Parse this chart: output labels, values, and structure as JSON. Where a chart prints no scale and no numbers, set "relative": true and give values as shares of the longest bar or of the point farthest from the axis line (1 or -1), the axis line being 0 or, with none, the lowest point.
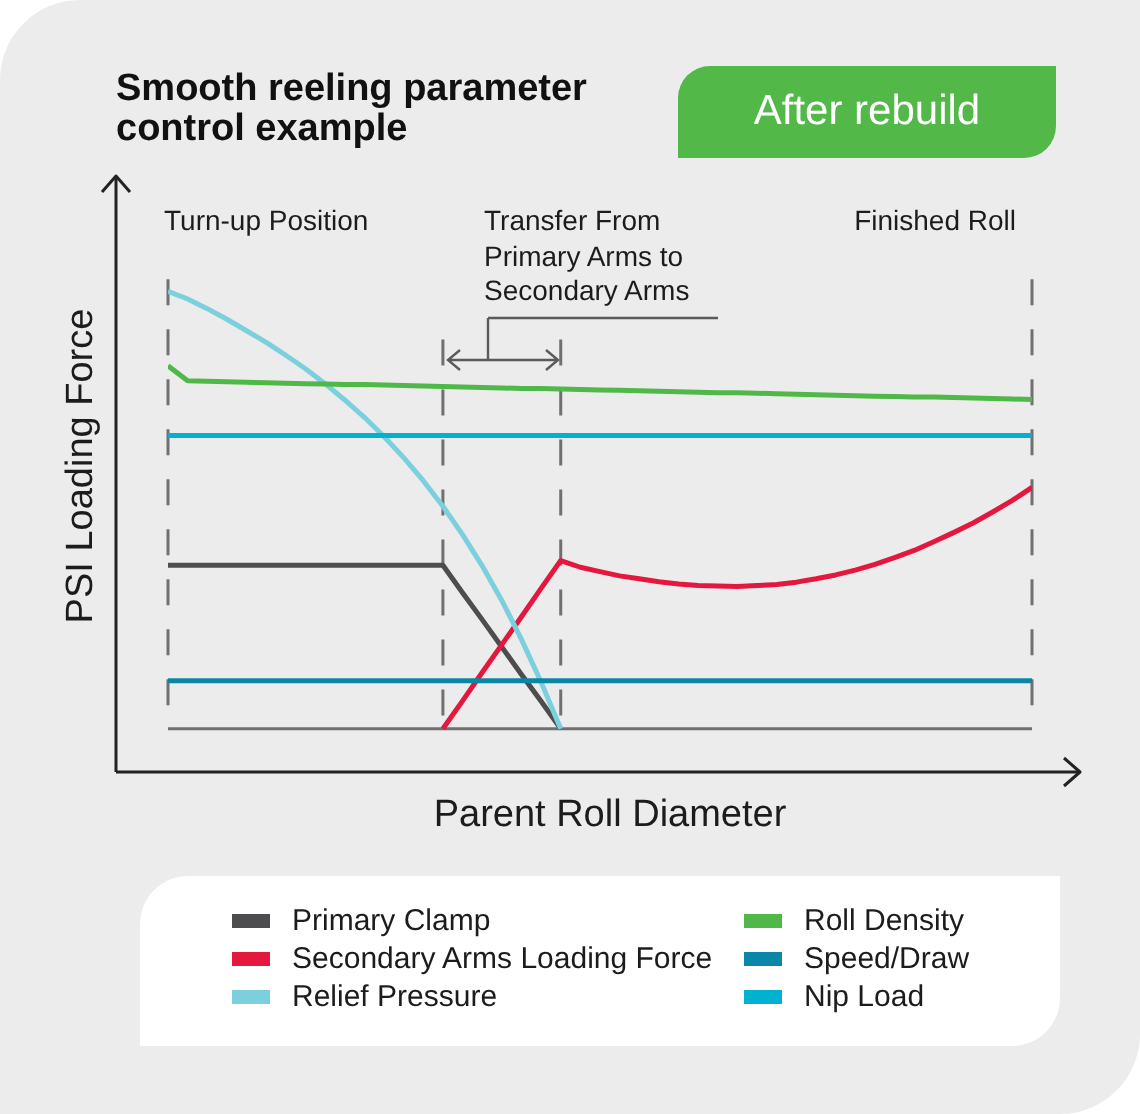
{
  "chart_data": {
    "type": "line",
    "title": "Smooth reeling parameter control example",
    "subtitle": "After rebuild",
    "xlabel": "Parent Roll Diameter",
    "ylabel": "PSI Loading Force",
    "relative": true,
    "categories": [
      null,
      null,
      null,
      null,
      null,
      null,
      null,
      null,
      null,
      null,
      null,
      null,
      null,
      null,
      null,
      null,
      null,
      null,
      null,
      null,
      null,
      null,
      null,
      null,
      null,
      null,
      null,
      null,
      null,
      null,
      null,
      null,
      null,
      null,
      null,
      null,
      null,
      null,
      null,
      null,
      null,
      null,
      null,
      null,
      null
    ],
    "series": [
      {
        "name": "Primary Clamp",
        "color": "#4d4d4f",
        "values": [
          0.43,
          0.43,
          0.43,
          0.43,
          0.43,
          0.43,
          0.43,
          0.43,
          0.43,
          0.43,
          0.43,
          0.43,
          0.43,
          0.43,
          0.43,
          0.373,
          0.317,
          0.26,
          0.203,
          0.147,
          0.09,
          null,
          null,
          null,
          null,
          null,
          null,
          null,
          null,
          null,
          null,
          null,
          null,
          null,
          null,
          null,
          null,
          null,
          null,
          null,
          null,
          null,
          null,
          null,
          null
        ]
      },
      {
        "name": "Secondary Arms Loading Force",
        "color": "#e4173e",
        "values": [
          null,
          null,
          null,
          null,
          null,
          null,
          null,
          null,
          null,
          null,
          null,
          null,
          null,
          null,
          0.09,
          0.148,
          0.207,
          0.265,
          0.323,
          0.382,
          0.44,
          0.426,
          0.417,
          0.408,
          0.402,
          0.396,
          0.391,
          0.388,
          0.387,
          0.386,
          0.388,
          0.39,
          0.395,
          0.402,
          0.41,
          0.42,
          0.432,
          0.446,
          0.461,
          0.479,
          0.498,
          0.518,
          0.541,
          0.565,
          0.592
        ]
      },
      {
        "name": "Relief Pressure",
        "color": "#7ccfdd",
        "values": [
          1,
          0.984,
          0.964,
          0.942,
          0.918,
          0.894,
          0.867,
          0.839,
          0.808,
          0.774,
          0.738,
          0.698,
          0.654,
          0.606,
          0.553,
          0.494,
          0.429,
          0.357,
          0.276,
          0.187,
          0.09,
          null,
          null,
          null,
          null,
          null,
          null,
          null,
          null,
          null,
          null,
          null,
          null,
          null,
          null,
          null,
          null,
          null,
          null,
          null,
          null,
          null,
          null,
          null,
          null
        ]
      },
      {
        "name": "Roll Density",
        "color": "#50b848",
        "values": [
          0.845,
          0.814,
          0.813,
          0.812,
          0.811,
          0.81,
          0.809,
          0.808,
          0.807,
          0.806,
          0.806,
          0.805,
          0.804,
          0.803,
          0.802,
          0.801,
          0.8,
          0.799,
          0.798,
          0.798,
          0.797,
          0.796,
          0.795,
          0.794,
          0.793,
          0.792,
          0.791,
          0.79,
          0.789,
          0.789,
          0.788,
          0.787,
          0.786,
          0.785,
          0.784,
          0.783,
          0.782,
          0.781,
          0.78,
          0.78,
          0.779,
          0.778,
          0.777,
          0.776,
          0.775
        ]
      },
      {
        "name": "Speed/Draw",
        "color": "#0a87a6",
        "values": [
          0.19,
          0.19,
          0.19,
          0.19,
          0.19,
          0.19,
          0.19,
          0.19,
          0.19,
          0.19,
          0.19,
          0.19,
          0.19,
          0.19,
          0.19,
          0.19,
          0.19,
          0.19,
          0.19,
          0.19,
          0.19,
          0.19,
          0.19,
          0.19,
          0.19,
          0.19,
          0.19,
          0.19,
          0.19,
          0.19,
          0.19,
          0.19,
          0.19,
          0.19,
          0.19,
          0.19,
          0.19,
          0.19,
          0.19,
          0.19,
          0.19,
          0.19,
          0.19,
          0.19,
          0.19
        ]
      },
      {
        "name": "Nip Load",
        "color": "#00b1d0",
        "values": [
          0.7,
          0.7,
          0.7,
          0.7,
          0.7,
          0.7,
          0.7,
          0.7,
          0.7,
          0.7,
          0.7,
          0.7,
          0.7,
          0.7,
          0.7,
          0.7,
          0.7,
          0.7,
          0.7,
          0.7,
          0.7,
          0.7,
          0.7,
          0.7,
          0.7,
          0.7,
          0.7,
          0.7,
          0.7,
          0.7,
          0.7,
          0.7,
          0.7,
          0.7,
          0.7,
          0.7,
          0.7,
          0.7,
          0.7,
          0.7,
          0.7,
          0.7,
          0.7,
          0.7,
          0.7
        ]
      }
    ],
    "ref_lines": [
      {
        "axis": "y",
        "value": 0.09,
        "color": "#707070",
        "line_style": "solid"
      }
    ],
    "annotations": [
      "Turn-up Position",
      "Transfer From Primary Arms to Secondary Arms",
      "Finished Roll"
    ],
    "legend": "bottom",
    "marker": "none",
    "line_style": "solid"
  }
}
